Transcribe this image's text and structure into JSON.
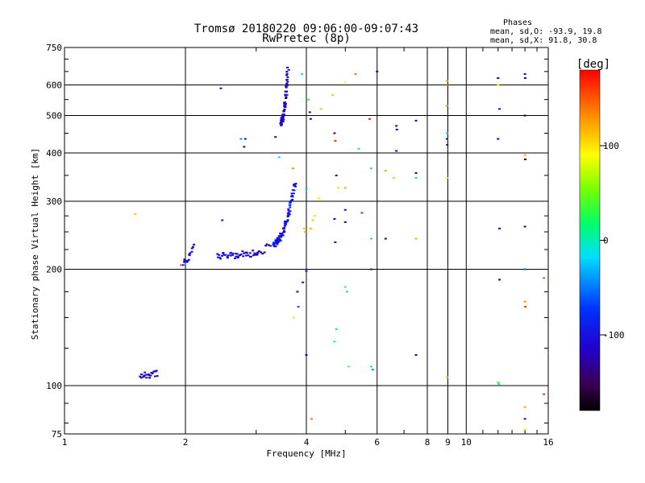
{
  "chart_data": {
    "type": "scatter",
    "title": "Tromsø 20180220 09:06:00-09:07:43",
    "subtitle": "RwPretec (8p)",
    "xlabel": "Frequency [MHz]",
    "ylabel": "Stationary phase Virtual Height [km]",
    "x_scale": "log",
    "y_scale": "log",
    "xlim": [
      1,
      16
    ],
    "ylim": [
      75,
      750
    ],
    "xticks": [
      1,
      2,
      4,
      6,
      8,
      9,
      10,
      16
    ],
    "xtick_labels": [
      "1",
      "2",
      "4",
      "6",
      "8",
      "9",
      "10",
      "16"
    ],
    "yticks": [
      75,
      100,
      200,
      300,
      400,
      500,
      600,
      750
    ],
    "ytick_labels": [
      "75",
      "100",
      "200",
      "300",
      "400",
      "500",
      "600",
      "750"
    ],
    "grid": true,
    "stats": {
      "header": "Phases",
      "line1": "mean, sd,O: -93.9, 19.8",
      "line2": "mean, sd,X:  91.8, 30.8"
    },
    "colorbar": {
      "label": "[deg]",
      "range": [
        -180,
        180
      ],
      "ticks": [
        100,
        0,
        -100
      ],
      "tick_labels": [
        "100",
        "0",
        "-100"
      ],
      "colormap": "rainbow"
    },
    "point_groups": [
      {
        "x": [
          1.55,
          1.7
        ],
        "y": [
          106,
          108
        ],
        "phase": -110,
        "count": 24
      },
      {
        "x": [
          1.97,
          2.1
        ],
        "y": [
          208,
          230
        ],
        "phase": -110,
        "count": 16
      },
      {
        "x": [
          2.4,
          3.05
        ],
        "y": [
          217,
          221
        ],
        "phase": -105,
        "count": 45
      },
      {
        "x": [
          3.0,
          3.25
        ],
        "y": [
          222,
          232
        ],
        "phase": -130,
        "count": 10
      },
      {
        "x": [
          3.3,
          3.75
        ],
        "y": [
          232,
          335
        ],
        "phase": -100,
        "count": 90
      },
      {
        "x": [
          3.45,
          3.6
        ],
        "y": [
          480,
          660
        ],
        "phase": -115,
        "count": 70
      }
    ],
    "points": [
      {
        "x": 1.5,
        "y": 278,
        "phase": 110
      },
      {
        "x": 1.95,
        "y": 205,
        "phase": 150
      },
      {
        "x": 2.45,
        "y": 588,
        "phase": -110
      },
      {
        "x": 2.47,
        "y": 268,
        "phase": -110
      },
      {
        "x": 2.75,
        "y": 435,
        "phase": -40
      },
      {
        "x": 2.8,
        "y": 415,
        "phase": -140
      },
      {
        "x": 2.82,
        "y": 435,
        "phase": -100
      },
      {
        "x": 3.35,
        "y": 440,
        "phase": -100
      },
      {
        "x": 3.42,
        "y": 390,
        "phase": -20
      },
      {
        "x": 3.7,
        "y": 365,
        "phase": 130
      },
      {
        "x": 3.72,
        "y": 150,
        "phase": 100
      },
      {
        "x": 3.8,
        "y": 175,
        "phase": -120
      },
      {
        "x": 3.82,
        "y": 160,
        "phase": -60
      },
      {
        "x": 3.9,
        "y": 640,
        "phase": -10
      },
      {
        "x": 3.92,
        "y": 185,
        "phase": -100
      },
      {
        "x": 3.95,
        "y": 255,
        "phase": 110
      },
      {
        "x": 3.97,
        "y": 250,
        "phase": 120
      },
      {
        "x": 4.0,
        "y": 322,
        "phase": -20
      },
      {
        "x": 4.0,
        "y": 198,
        "phase": -100
      },
      {
        "x": 4.0,
        "y": 120,
        "phase": -110
      },
      {
        "x": 4.05,
        "y": 550,
        "phase": 20
      },
      {
        "x": 4.08,
        "y": 510,
        "phase": -120
      },
      {
        "x": 4.1,
        "y": 490,
        "phase": -140
      },
      {
        "x": 4.1,
        "y": 255,
        "phase": 120
      },
      {
        "x": 4.12,
        "y": 82,
        "phase": 140
      },
      {
        "x": 4.15,
        "y": 268,
        "phase": 110
      },
      {
        "x": 4.2,
        "y": 275,
        "phase": 100
      },
      {
        "x": 4.3,
        "y": 305,
        "phase": 100
      },
      {
        "x": 4.35,
        "y": 520,
        "phase": 60
      },
      {
        "x": 4.65,
        "y": 565,
        "phase": 110
      },
      {
        "x": 4.7,
        "y": 450,
        "phase": -140
      },
      {
        "x": 4.72,
        "y": 430,
        "phase": 160
      },
      {
        "x": 4.75,
        "y": 350,
        "phase": -120
      },
      {
        "x": 4.8,
        "y": 325,
        "phase": 100
      },
      {
        "x": 4.7,
        "y": 270,
        "phase": -110
      },
      {
        "x": 4.72,
        "y": 235,
        "phase": -100
      },
      {
        "x": 4.75,
        "y": 140,
        "phase": 0
      },
      {
        "x": 4.7,
        "y": 130,
        "phase": 20
      },
      {
        "x": 5.0,
        "y": 610,
        "phase": 90
      },
      {
        "x": 5.0,
        "y": 325,
        "phase": 120
      },
      {
        "x": 5.0,
        "y": 285,
        "phase": -100
      },
      {
        "x": 5.0,
        "y": 265,
        "phase": -150
      },
      {
        "x": 5.0,
        "y": 180,
        "phase": 30
      },
      {
        "x": 5.05,
        "y": 175,
        "phase": 0
      },
      {
        "x": 5.1,
        "y": 112,
        "phase": 50
      },
      {
        "x": 5.3,
        "y": 640,
        "phase": 140
      },
      {
        "x": 5.4,
        "y": 410,
        "phase": 0
      },
      {
        "x": 5.5,
        "y": 280,
        "phase": 170
      },
      {
        "x": 5.75,
        "y": 490,
        "phase": 170
      },
      {
        "x": 5.8,
        "y": 365,
        "phase": 10
      },
      {
        "x": 5.8,
        "y": 240,
        "phase": 10
      },
      {
        "x": 5.8,
        "y": 200,
        "phase": -140
      },
      {
        "x": 5.8,
        "y": 112,
        "phase": 0
      },
      {
        "x": 5.85,
        "y": 110,
        "phase": -40
      },
      {
        "x": 6.0,
        "y": 650,
        "phase": -130
      },
      {
        "x": 6.3,
        "y": 360,
        "phase": 120
      },
      {
        "x": 6.3,
        "y": 240,
        "phase": -150
      },
      {
        "x": 6.6,
        "y": 345,
        "phase": 60
      },
      {
        "x": 6.7,
        "y": 470,
        "phase": -130
      },
      {
        "x": 6.72,
        "y": 460,
        "phase": -120
      },
      {
        "x": 6.7,
        "y": 405,
        "phase": -100
      },
      {
        "x": 7.5,
        "y": 485,
        "phase": -120
      },
      {
        "x": 7.5,
        "y": 355,
        "phase": -150
      },
      {
        "x": 7.5,
        "y": 345,
        "phase": 10
      },
      {
        "x": 7.5,
        "y": 240,
        "phase": 120
      },
      {
        "x": 7.5,
        "y": 120,
        "phase": -120
      },
      {
        "x": 8.95,
        "y": 615,
        "phase": 120
      },
      {
        "x": 8.97,
        "y": 600,
        "phase": 160
      },
      {
        "x": 8.95,
        "y": 530,
        "phase": 130
      },
      {
        "x": 8.95,
        "y": 450,
        "phase": -20
      },
      {
        "x": 8.95,
        "y": 435,
        "phase": -100
      },
      {
        "x": 8.97,
        "y": 420,
        "phase": -140
      },
      {
        "x": 8.95,
        "y": 345,
        "phase": 90
      },
      {
        "x": 8.95,
        "y": 105,
        "phase": 110
      },
      {
        "x": 12.0,
        "y": 625,
        "phase": -130
      },
      {
        "x": 12.0,
        "y": 600,
        "phase": 100
      },
      {
        "x": 12.1,
        "y": 520,
        "phase": -110
      },
      {
        "x": 12.0,
        "y": 435,
        "phase": -120
      },
      {
        "x": 12.1,
        "y": 255,
        "phase": -110
      },
      {
        "x": 12.1,
        "y": 188,
        "phase": -140
      },
      {
        "x": 12.0,
        "y": 102,
        "phase": 40
      },
      {
        "x": 12.05,
        "y": 101,
        "phase": -10
      },
      {
        "x": 14.0,
        "y": 640,
        "phase": -110
      },
      {
        "x": 14.02,
        "y": 625,
        "phase": -130
      },
      {
        "x": 14.0,
        "y": 500,
        "phase": -170
      },
      {
        "x": 14.0,
        "y": 395,
        "phase": 120
      },
      {
        "x": 14.02,
        "y": 385,
        "phase": -160
      },
      {
        "x": 14.0,
        "y": 258,
        "phase": -150
      },
      {
        "x": 14.0,
        "y": 200,
        "phase": -60
      },
      {
        "x": 14.0,
        "y": 165,
        "phase": 130
      },
      {
        "x": 14.02,
        "y": 160,
        "phase": 160
      },
      {
        "x": 14.0,
        "y": 88,
        "phase": 120
      },
      {
        "x": 14.0,
        "y": 82,
        "phase": -110
      },
      {
        "x": 14.0,
        "y": 77,
        "phase": 80
      },
      {
        "x": 15.6,
        "y": 190,
        "phase": 150
      },
      {
        "x": 15.6,
        "y": 95,
        "phase": 160
      }
    ]
  }
}
